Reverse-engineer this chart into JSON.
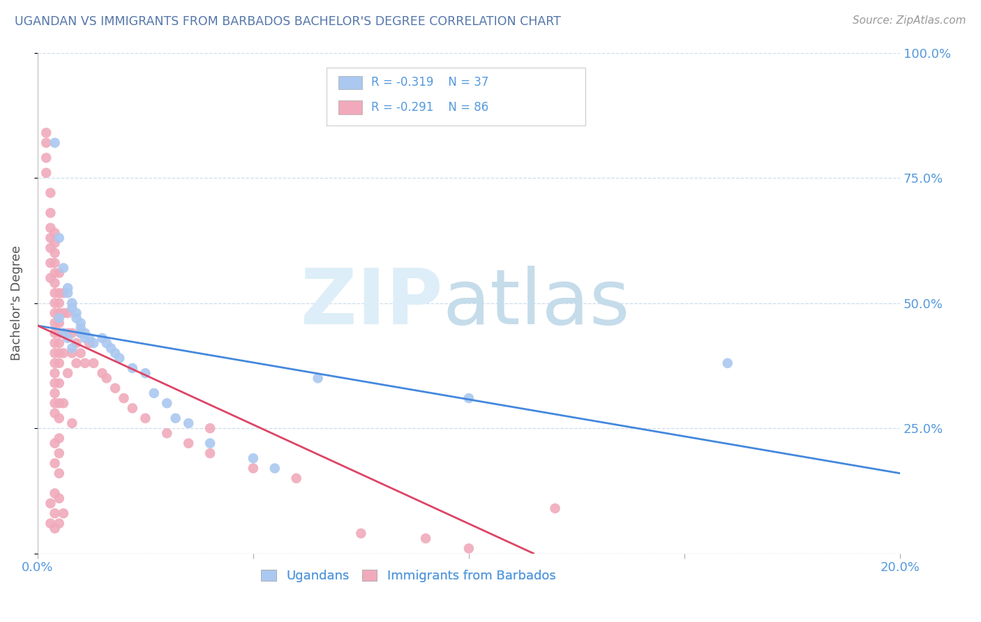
{
  "title": "UGANDAN VS IMMIGRANTS FROM BARBADOS BACHELOR'S DEGREE CORRELATION CHART",
  "source": "Source: ZipAtlas.com",
  "ylabel": "Bachelor's Degree",
  "ugandan_color": "#aac8f0",
  "barbados_color": "#f0aabb",
  "line_ugandan_color": "#4488dd",
  "line_barbados_color": "#dd4466",
  "xlim": [
    0.0,
    0.2
  ],
  "ylim": [
    0.0,
    1.0
  ],
  "yticks": [
    0.0,
    0.25,
    0.5,
    0.75,
    1.0
  ],
  "ytick_labels": [
    "",
    "25.0%",
    "50.0%",
    "75.0%",
    "100.0%"
  ],
  "xticks": [
    0.0,
    0.05,
    0.1,
    0.15,
    0.2
  ],
  "xtick_labels": [
    "0.0%",
    "",
    "",
    "",
    "20.0%"
  ],
  "tick_color": "#5599dd",
  "legend_text_color": "#5599dd",
  "grid_color": "#ccddee",
  "ugandan_points": [
    [
      0.004,
      0.82
    ],
    [
      0.005,
      0.63
    ],
    [
      0.006,
      0.57
    ],
    [
      0.007,
      0.53
    ],
    [
      0.007,
      0.52
    ],
    [
      0.008,
      0.5
    ],
    [
      0.008,
      0.49
    ],
    [
      0.009,
      0.48
    ],
    [
      0.009,
      0.47
    ],
    [
      0.01,
      0.46
    ],
    [
      0.01,
      0.45
    ],
    [
      0.01,
      0.44
    ],
    [
      0.011,
      0.44
    ],
    [
      0.011,
      0.43
    ],
    [
      0.012,
      0.43
    ],
    [
      0.013,
      0.42
    ],
    [
      0.015,
      0.43
    ],
    [
      0.016,
      0.42
    ],
    [
      0.017,
      0.41
    ],
    [
      0.018,
      0.4
    ],
    [
      0.019,
      0.39
    ],
    [
      0.022,
      0.37
    ],
    [
      0.025,
      0.36
    ],
    [
      0.027,
      0.32
    ],
    [
      0.03,
      0.3
    ],
    [
      0.032,
      0.27
    ],
    [
      0.035,
      0.26
    ],
    [
      0.04,
      0.22
    ],
    [
      0.05,
      0.19
    ],
    [
      0.055,
      0.17
    ],
    [
      0.065,
      0.35
    ],
    [
      0.1,
      0.31
    ],
    [
      0.16,
      0.38
    ],
    [
      0.005,
      0.47
    ],
    [
      0.006,
      0.44
    ],
    [
      0.007,
      0.43
    ],
    [
      0.008,
      0.41
    ]
  ],
  "barbados_points": [
    [
      0.002,
      0.79
    ],
    [
      0.002,
      0.76
    ],
    [
      0.003,
      0.72
    ],
    [
      0.003,
      0.68
    ],
    [
      0.003,
      0.65
    ],
    [
      0.003,
      0.63
    ],
    [
      0.003,
      0.61
    ],
    [
      0.004,
      0.6
    ],
    [
      0.004,
      0.58
    ],
    [
      0.004,
      0.56
    ],
    [
      0.004,
      0.54
    ],
    [
      0.004,
      0.52
    ],
    [
      0.004,
      0.5
    ],
    [
      0.004,
      0.48
    ],
    [
      0.004,
      0.46
    ],
    [
      0.004,
      0.44
    ],
    [
      0.004,
      0.42
    ],
    [
      0.004,
      0.4
    ],
    [
      0.004,
      0.38
    ],
    [
      0.004,
      0.36
    ],
    [
      0.004,
      0.34
    ],
    [
      0.004,
      0.32
    ],
    [
      0.004,
      0.3
    ],
    [
      0.004,
      0.28
    ],
    [
      0.004,
      0.22
    ],
    [
      0.004,
      0.18
    ],
    [
      0.004,
      0.12
    ],
    [
      0.004,
      0.08
    ],
    [
      0.005,
      0.56
    ],
    [
      0.005,
      0.52
    ],
    [
      0.005,
      0.5
    ],
    [
      0.005,
      0.48
    ],
    [
      0.005,
      0.46
    ],
    [
      0.005,
      0.44
    ],
    [
      0.005,
      0.42
    ],
    [
      0.005,
      0.4
    ],
    [
      0.005,
      0.38
    ],
    [
      0.005,
      0.34
    ],
    [
      0.005,
      0.3
    ],
    [
      0.005,
      0.27
    ],
    [
      0.005,
      0.23
    ],
    [
      0.005,
      0.2
    ],
    [
      0.005,
      0.16
    ],
    [
      0.005,
      0.11
    ],
    [
      0.006,
      0.52
    ],
    [
      0.006,
      0.48
    ],
    [
      0.006,
      0.44
    ],
    [
      0.006,
      0.4
    ],
    [
      0.006,
      0.3
    ],
    [
      0.007,
      0.48
    ],
    [
      0.007,
      0.44
    ],
    [
      0.007,
      0.36
    ],
    [
      0.008,
      0.44
    ],
    [
      0.008,
      0.4
    ],
    [
      0.008,
      0.26
    ],
    [
      0.009,
      0.42
    ],
    [
      0.009,
      0.38
    ],
    [
      0.01,
      0.44
    ],
    [
      0.01,
      0.4
    ],
    [
      0.011,
      0.38
    ],
    [
      0.012,
      0.42
    ],
    [
      0.013,
      0.38
    ],
    [
      0.015,
      0.36
    ],
    [
      0.016,
      0.35
    ],
    [
      0.018,
      0.33
    ],
    [
      0.02,
      0.31
    ],
    [
      0.022,
      0.29
    ],
    [
      0.025,
      0.27
    ],
    [
      0.03,
      0.24
    ],
    [
      0.035,
      0.22
    ],
    [
      0.04,
      0.2
    ],
    [
      0.05,
      0.17
    ],
    [
      0.06,
      0.15
    ],
    [
      0.04,
      0.25
    ],
    [
      0.003,
      0.1
    ],
    [
      0.003,
      0.06
    ],
    [
      0.004,
      0.05
    ],
    [
      0.005,
      0.06
    ],
    [
      0.006,
      0.08
    ],
    [
      0.075,
      0.04
    ],
    [
      0.09,
      0.03
    ],
    [
      0.1,
      0.01
    ],
    [
      0.12,
      0.09
    ],
    [
      0.002,
      0.84
    ],
    [
      0.002,
      0.82
    ],
    [
      0.003,
      0.58
    ],
    [
      0.003,
      0.55
    ],
    [
      0.004,
      0.62
    ],
    [
      0.004,
      0.64
    ]
  ],
  "ugandan_line_x": [
    0.0,
    0.2
  ],
  "ugandan_line_y": [
    0.455,
    0.16
  ],
  "barbados_line_x": [
    0.0,
    0.115
  ],
  "barbados_line_y": [
    0.455,
    0.0
  ]
}
